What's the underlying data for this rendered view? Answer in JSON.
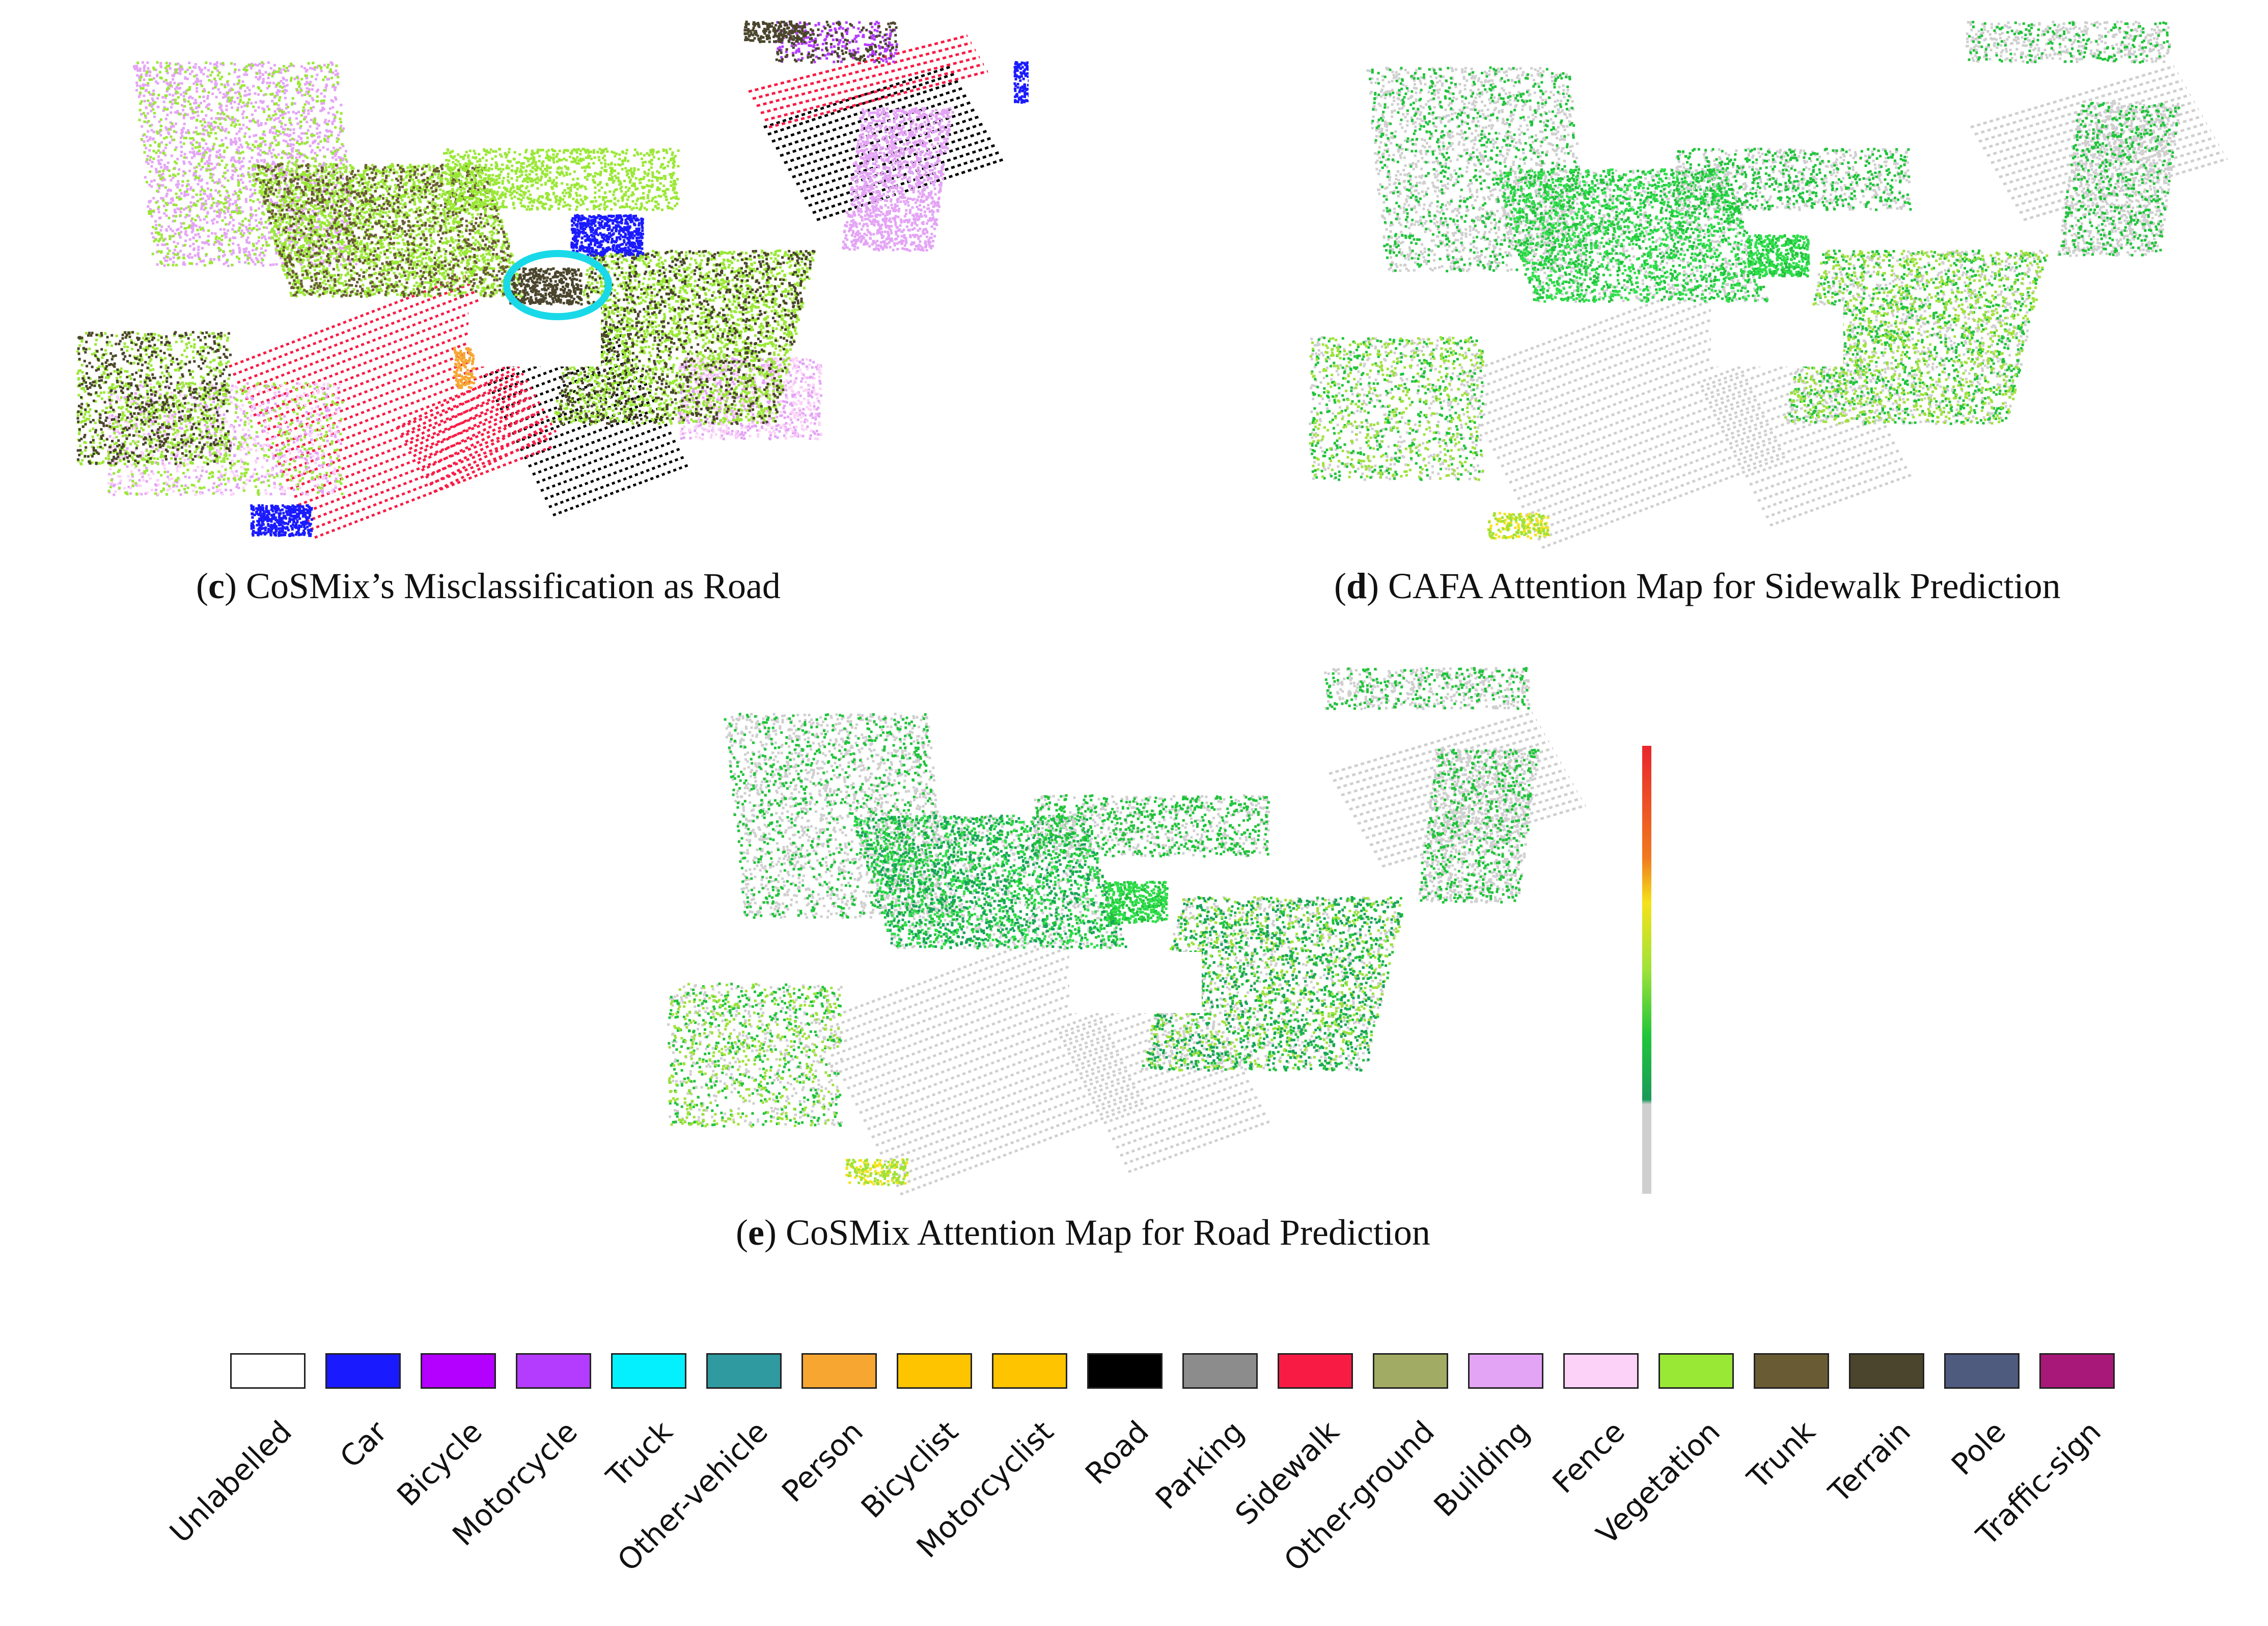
{
  "panels": [
    {
      "id": "c",
      "letter": "c",
      "title": "CoSMix’s Misclassification as Road"
    },
    {
      "id": "d",
      "letter": "d",
      "title": "CAFA Attention Map for Sidewalk Prediction"
    },
    {
      "id": "e",
      "letter": "e",
      "title": "CoSMix Attention Map for Road Prediction"
    }
  ],
  "colorbar": {
    "colors": [
      "#e8262c",
      "#f07a1f",
      "#f5e21a",
      "#9ee23a",
      "#1fc43a",
      "#1a9a5a",
      "#cfcfcf"
    ]
  },
  "highlight_circle_color": "#19d9e8",
  "legend": [
    {
      "label": "Unlabelled",
      "color": "#ffffff"
    },
    {
      "label": "Car",
      "color": "#1a1aff"
    },
    {
      "label": "Bicycle",
      "color": "#b400ff"
    },
    {
      "label": "Motorcycle",
      "color": "#b43cff"
    },
    {
      "label": "Truck",
      "color": "#05f0ff"
    },
    {
      "label": "Other-vehicle",
      "color": "#2f9aa0"
    },
    {
      "label": "Person",
      "color": "#f6a631"
    },
    {
      "label": "Bicyclist",
      "color": "#ffc400"
    },
    {
      "label": "Motorcyclist",
      "color": "#ffc400"
    },
    {
      "label": "Road",
      "color": "#000000"
    },
    {
      "label": "Parking",
      "color": "#8c8c8c"
    },
    {
      "label": "Sidewalk",
      "color": "#f81c45"
    },
    {
      "label": "Other-ground",
      "color": "#a2ab63"
    },
    {
      "label": "Building",
      "color": "#e4a4f6"
    },
    {
      "label": "Fence",
      "color": "#fcd2f8"
    },
    {
      "label": "Vegetation",
      "color": "#9ae836"
    },
    {
      "label": "Trunk",
      "color": "#695c34"
    },
    {
      "label": "Terrain",
      "color": "#4a452c"
    },
    {
      "label": "Pole",
      "color": "#4e5a7e"
    },
    {
      "label": "Traffic-sign",
      "color": "#a81878"
    }
  ]
}
